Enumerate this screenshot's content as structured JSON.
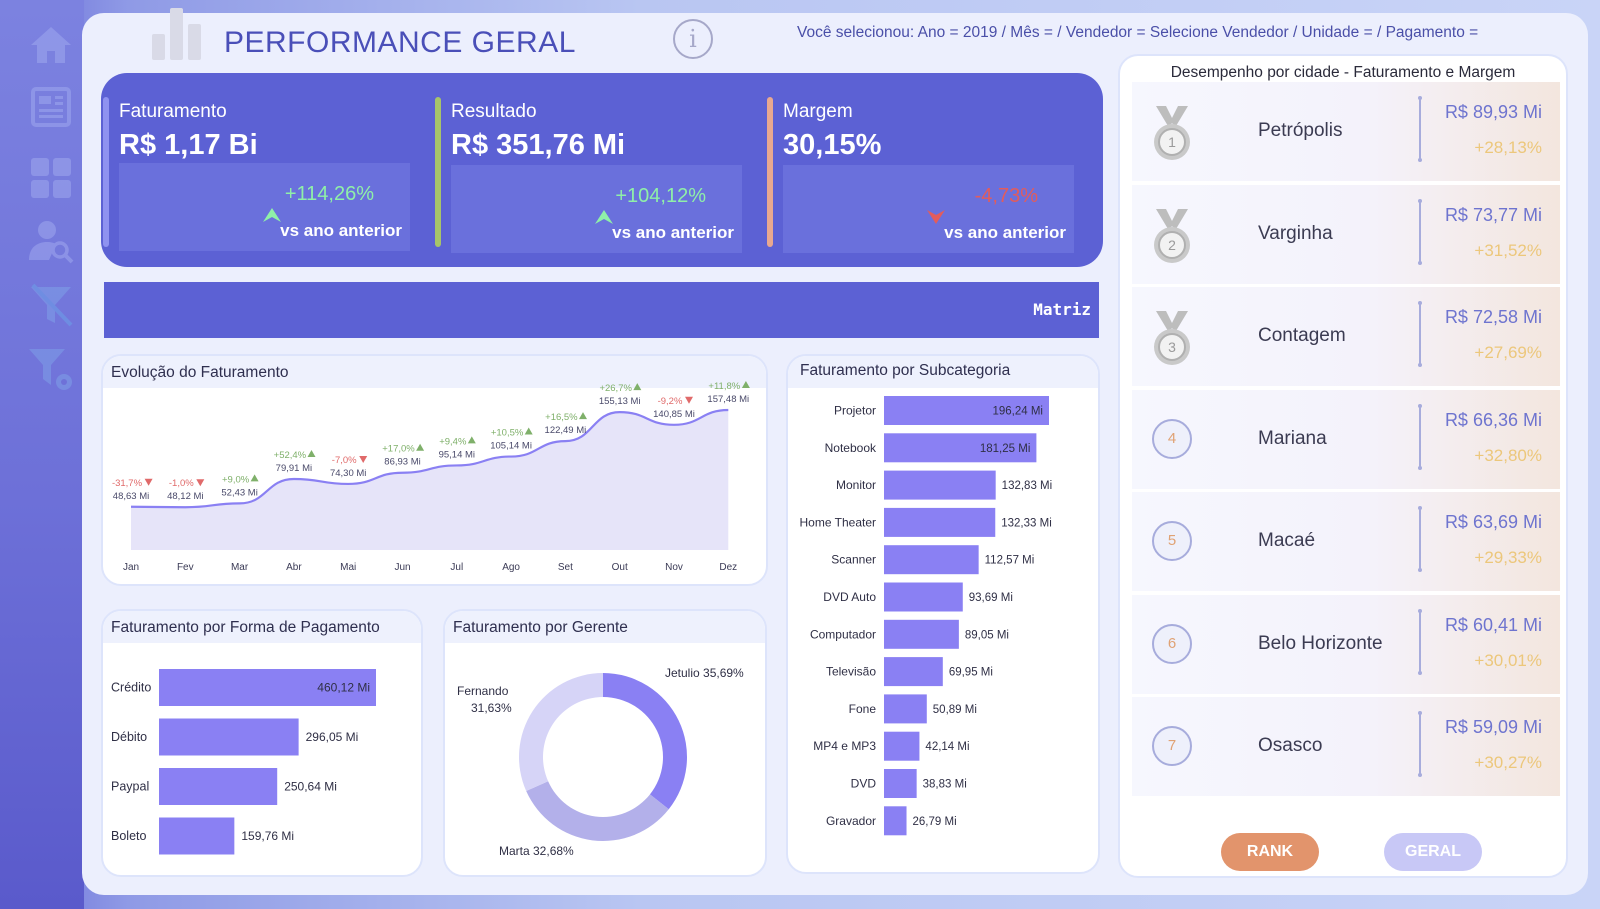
{
  "header": {
    "title": "PERFORMANCE GERAL",
    "info_glyph": "i",
    "selection": "Você selecionou: Ano = 2019 / Mês = / Vendedor = Selecione Vendedor / Unidade = / Pagamento ="
  },
  "sidebar": {
    "icons": [
      "home-icon",
      "report-icon",
      "dashboard-grid-icon",
      "user-search-icon",
      "clear-filter-icon",
      "filter-settings-icon"
    ]
  },
  "kpis": [
    {
      "label": "Faturamento",
      "value": "R$ 1,17 Bi",
      "change": "+114,26%",
      "direction": "up",
      "vs": "vs ano anterior",
      "accent": "#8f92f0"
    },
    {
      "label": "Resultado",
      "value": "R$ 351,76 Mi",
      "change": "+104,12%",
      "direction": "up",
      "vs": "vs ano anterior",
      "accent": "#a7c46a"
    },
    {
      "label": "Margem",
      "value": "30,15%",
      "change": "-4,73%",
      "direction": "down",
      "vs": "vs ano anterior",
      "accent": "#e8a890"
    }
  ],
  "matriz": {
    "label": "Matriz"
  },
  "colors": {
    "positive": "#8ff0a8",
    "negative": "#e25c5c",
    "bar": "#8a80f3",
    "accent": "#5c61d4"
  },
  "evolucao": {
    "title": "Evolução do Faturamento"
  },
  "subcategoria": {
    "title": "Faturamento por Subcategoria"
  },
  "pagamento": {
    "title": "Faturamento por Forma de Pagamento"
  },
  "gerente": {
    "title": "Faturamento por Gerente"
  },
  "chart_data": [
    {
      "type": "area",
      "title": "Evolução do Faturamento",
      "categories": [
        "Jan",
        "Fev",
        "Mar",
        "Abr",
        "Mai",
        "Jun",
        "Jul",
        "Ago",
        "Set",
        "Out",
        "Nov",
        "Dez"
      ],
      "values": [
        48.63,
        48.12,
        52.43,
        79.91,
        74.3,
        86.93,
        95.14,
        105.14,
        122.49,
        155.13,
        140.85,
        157.48
      ],
      "value_labels": [
        "48,63 Mi",
        "48,12 Mi",
        "52,43 Mi",
        "79,91 Mi",
        "74,30 Mi",
        "86,93 Mi",
        "95,14 Mi",
        "105,14 Mi",
        "122,49 Mi",
        "155,13 Mi",
        "140,85 Mi",
        "157,48 Mi"
      ],
      "changes": [
        "-31,7%",
        "-1,0%",
        "+9,0%",
        "+52,4%",
        "-7,0%",
        "+17,0%",
        "+9,4%",
        "+10,5%",
        "+16,5%",
        "+26,7%",
        "-9,2%",
        "+11,8%"
      ],
      "ylim": [
        0,
        180
      ]
    },
    {
      "type": "bar",
      "orientation": "horizontal",
      "title": "Faturamento por Subcategoria",
      "categories": [
        "Projetor",
        "Notebook",
        "Monitor",
        "Home Theater",
        "Scanner",
        "DVD Auto",
        "Computador",
        "Televisão",
        "Fone",
        "MP4 e MP3",
        "DVD",
        "Gravador"
      ],
      "values": [
        196.24,
        181.25,
        132.83,
        132.33,
        112.57,
        93.69,
        89.05,
        69.95,
        50.89,
        42.14,
        38.83,
        26.79
      ],
      "value_labels": [
        "196,24 Mi",
        "181,25 Mi",
        "132,83 Mi",
        "132,33 Mi",
        "112,57 Mi",
        "93,69 Mi",
        "89,05 Mi",
        "69,95 Mi",
        "50,89 Mi",
        "42,14 Mi",
        "38,83 Mi",
        "26,79 Mi"
      ]
    },
    {
      "type": "bar",
      "orientation": "horizontal",
      "title": "Faturamento por Forma de Pagamento",
      "categories": [
        "Crédito",
        "Débito",
        "Paypal",
        "Boleto"
      ],
      "values": [
        460.12,
        296.05,
        250.64,
        159.76
      ],
      "value_labels": [
        "460,12 Mi",
        "296,05 Mi",
        "250,64 Mi",
        "159,76 Mi"
      ]
    },
    {
      "type": "pie",
      "style": "donut",
      "title": "Faturamento por Gerente",
      "labels": [
        "Jetulio",
        "Marta",
        "Fernando"
      ],
      "values": [
        35.69,
        32.68,
        31.63
      ],
      "value_labels": [
        "35,69%",
        "32,68%",
        "31,63%"
      ],
      "colors": [
        "#8a80f3",
        "#b3b0ea",
        "#d6d4f7"
      ]
    }
  ],
  "ranking": {
    "title": "Desempenho por cidade - Faturamento e Margem",
    "rows": [
      {
        "rank": "1",
        "city": "Petrópolis",
        "value": "R$ 89,93 Mi",
        "pct": "+28,13%",
        "medal": true
      },
      {
        "rank": "2",
        "city": "Varginha",
        "value": "R$ 73,77 Mi",
        "pct": "+31,52%",
        "medal": true
      },
      {
        "rank": "3",
        "city": "Contagem",
        "value": "R$ 72,58 Mi",
        "pct": "+27,69%",
        "medal": true
      },
      {
        "rank": "4",
        "city": "Mariana",
        "value": "R$ 66,36 Mi",
        "pct": "+32,80%",
        "medal": false
      },
      {
        "rank": "5",
        "city": "Macaé",
        "value": "R$ 63,69 Mi",
        "pct": "+29,33%",
        "medal": false
      },
      {
        "rank": "6",
        "city": "Belo Horizonte",
        "value": "R$ 60,41 Mi",
        "pct": "+30,01%",
        "medal": false
      },
      {
        "rank": "7",
        "city": "Osasco",
        "value": "R$ 59,09 Mi",
        "pct": "+30,27%",
        "medal": false
      }
    ],
    "buttons": {
      "rank": "RANK",
      "geral": "GERAL"
    }
  }
}
